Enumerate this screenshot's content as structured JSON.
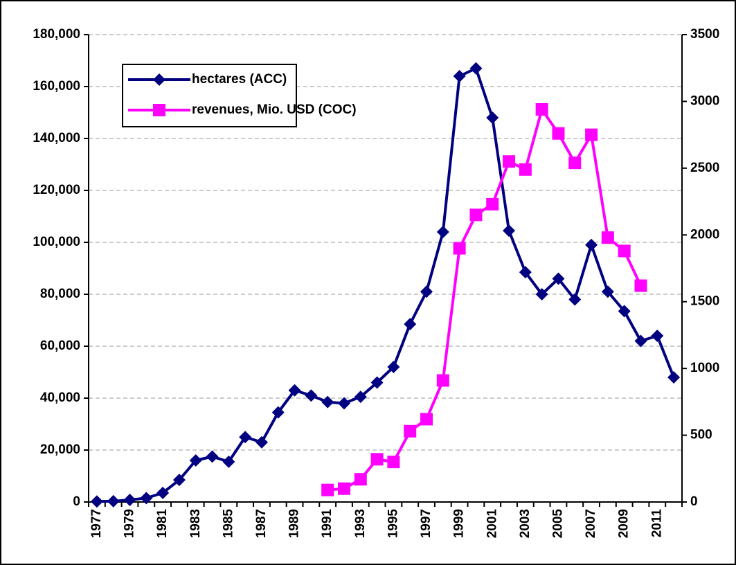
{
  "chart_data": {
    "type": "line",
    "categories": [
      "1977",
      null,
      "1979",
      null,
      "1981",
      null,
      "1983",
      null,
      "1985",
      null,
      "1987",
      null,
      "1989",
      null,
      "1991",
      null,
      "1993",
      null,
      "1995",
      null,
      "1997",
      null,
      "1999",
      null,
      "2001",
      null,
      "2003",
      null,
      "2005",
      null,
      "2007",
      null,
      "2009",
      null,
      "2011",
      null
    ],
    "series": [
      {
        "name": "hectares (ACC)",
        "color": "#000080",
        "marker": "diamond",
        "values": [
          200,
          300,
          800,
          1500,
          3500,
          8500,
          16000,
          17500,
          15500,
          25000,
          23000,
          34500,
          43000,
          41000,
          38500,
          38000,
          40500,
          46000,
          52000,
          68500,
          81000,
          104000,
          164000,
          167000,
          148000,
          104500,
          88500,
          80000,
          86000,
          78000,
          99000,
          81000,
          73500,
          62000,
          64000,
          48000
        ]
      },
      {
        "name": "revenues, Mio. USD (COC)",
        "color": "#ff00ff",
        "marker": "square",
        "axis": "y2",
        "values": [
          null,
          null,
          null,
          null,
          null,
          null,
          null,
          null,
          null,
          null,
          null,
          null,
          null,
          null,
          90,
          100,
          170,
          320,
          300,
          530,
          620,
          910,
          1900,
          2150,
          2230,
          2550,
          2490,
          2940,
          2760,
          2540,
          2750,
          1980,
          1880,
          1620,
          null,
          null
        ]
      }
    ],
    "ylim": [
      0,
      180000
    ],
    "yticks": [
      0,
      {
        "value": 20000,
        "label": "20,000"
      },
      {
        "value": 40000,
        "label": "40,000"
      },
      {
        "value": 60000,
        "label": "60,000"
      },
      {
        "value": 80000,
        "label": "80,000"
      },
      {
        "value": 100000,
        "label": "100,000"
      },
      {
        "value": 120000,
        "label": "120,000"
      },
      {
        "value": 140000,
        "label": "140,000"
      },
      {
        "value": 160000,
        "label": "160,000"
      },
      {
        "value": 180000,
        "label": "180,000"
      }
    ],
    "y2lim": [
      0,
      3500
    ],
    "y2ticks": [
      0,
      500,
      1000,
      1500,
      2000,
      2500,
      3000,
      3500
    ],
    "grid": true,
    "legend": "upper left"
  }
}
